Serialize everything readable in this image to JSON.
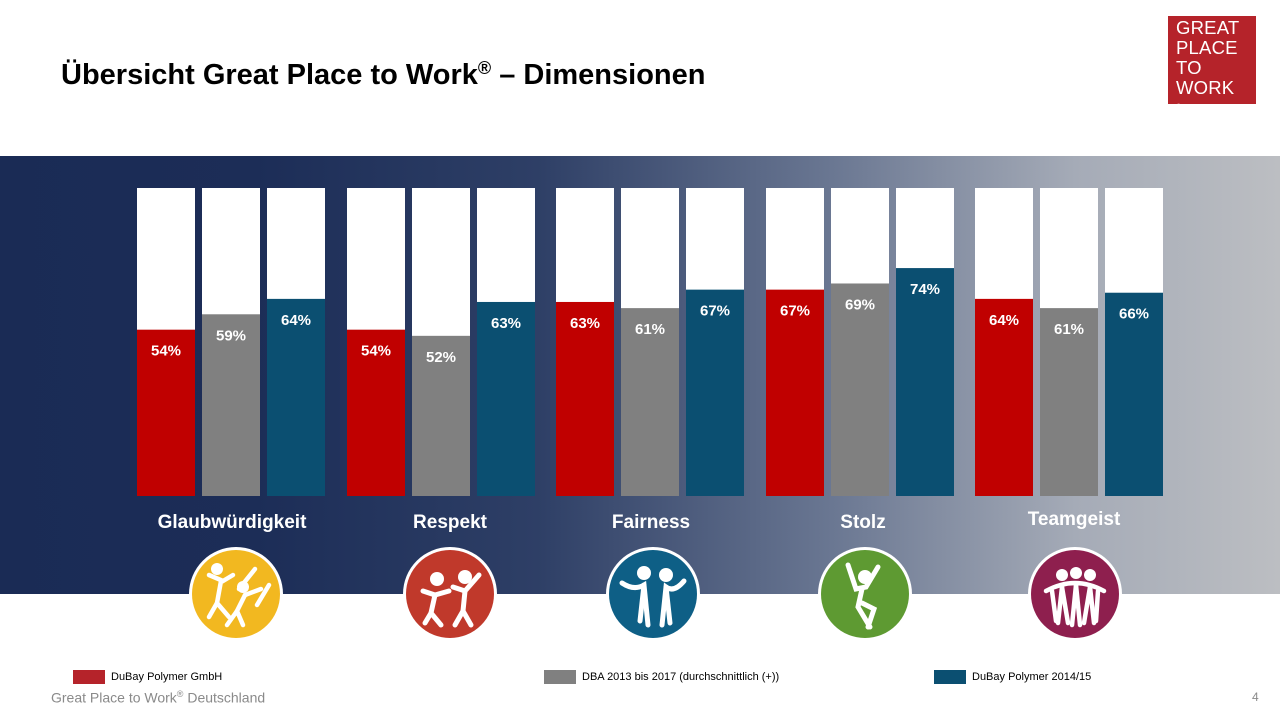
{
  "page": {
    "title_main": "Übersicht Great Place to Work",
    "title_reg": "®",
    "title_rest": " – Dimensionen",
    "logo_lines": [
      "GREAT",
      "PLACE",
      "TO",
      "WORK"
    ],
    "logo_reg": "®",
    "footer_main": "Great Place to Work",
    "footer_reg": "®",
    "footer_rest": " Deutschland",
    "page_number": "4"
  },
  "colors": {
    "series": [
      "#c00000",
      "#808080",
      "#0b4f71"
    ],
    "icons": [
      "#f2b820",
      "#c0392b",
      "#0e5f86",
      "#5e9a32",
      "#8e1f4e"
    ],
    "legend": [
      "#b5232a",
      "#808080",
      "#0b4f71"
    ]
  },
  "icons": [
    "glaubwuerdigkeit-icon",
    "respekt-icon",
    "fairness-icon",
    "stolz-icon",
    "teamgeist-icon"
  ],
  "chart_data": {
    "type": "bar",
    "categories": [
      "Glaubwürdigkeit",
      "Respekt",
      "Fairness",
      "Stolz",
      "Teamgeist"
    ],
    "series": [
      {
        "name": "DuBay Polymer GmbH",
        "values": [
          54,
          54,
          63,
          67,
          64
        ]
      },
      {
        "name": "DBA 2013 bis 2017 (durchschnittlich (+))",
        "values": [
          59,
          52,
          61,
          69,
          61
        ]
      },
      {
        "name": "DuBay Polymer 2014/15",
        "values": [
          64,
          63,
          67,
          74,
          66
        ]
      }
    ],
    "value_suffix": "%",
    "ylim": [
      0,
      100
    ],
    "legend_position": "bottom",
    "grid": false
  }
}
